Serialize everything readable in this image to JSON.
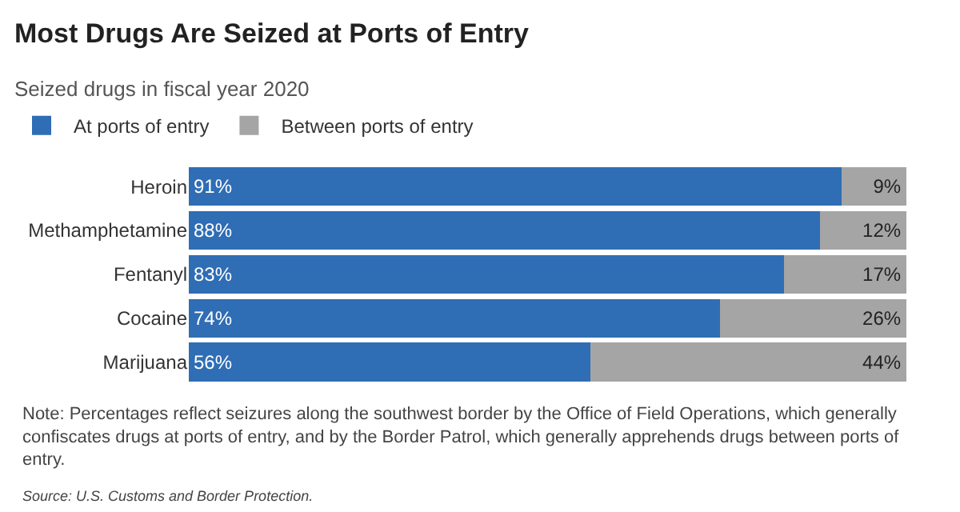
{
  "chart_data": {
    "type": "bar",
    "orientation": "horizontal",
    "stacked": true,
    "title": "Most Drugs Are Seized at Ports of Entry",
    "subtitle": "Seized drugs in fiscal year 2020",
    "categories": [
      "Heroin",
      "Methamphetamine",
      "Fentanyl",
      "Cocaine",
      "Marijuana"
    ],
    "series": [
      {
        "name": "At ports of entry",
        "color": "#2f6db5",
        "values": [
          91,
          88,
          83,
          74,
          56
        ],
        "value_labels": [
          "91%",
          "88%",
          "83%",
          "74%",
          "56%"
        ]
      },
      {
        "name": "Between ports of entry",
        "color": "#a5a5a5",
        "values": [
          9,
          12,
          17,
          26,
          44
        ],
        "value_labels": [
          "9%",
          "12%",
          "17%",
          "26%",
          "44%"
        ]
      }
    ],
    "legend": "top left",
    "annotations": [
      "Note: Percentages reflect seizures along the southwest border by the Office of Field Operations, which generally confiscates drugs at ports of entry, and by the Border Patrol, which generally apprehends drugs between ports of entry.",
      "Source: U.S. Customs and Border Protection."
    ]
  }
}
